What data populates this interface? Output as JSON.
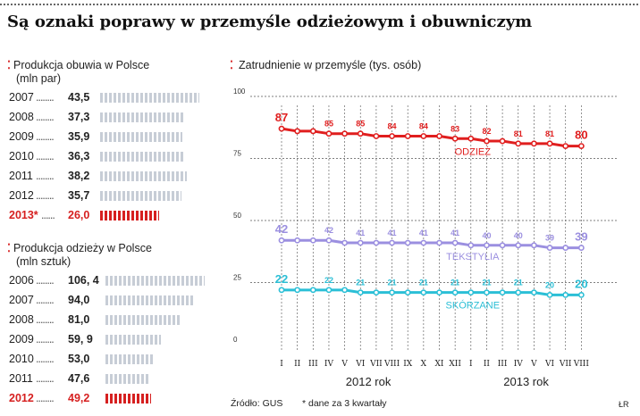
{
  "title": "Są oznaki poprawy w przemyśle odzieżowym i obuwniczym",
  "shoes": {
    "title_line1": "Produkcja obuwia w Polsce",
    "title_line2": "(mln par)",
    "rows": [
      {
        "year": "2007",
        "value": "43,5",
        "num": 43.5,
        "highlight": false
      },
      {
        "year": "2008",
        "value": "37,3",
        "num": 37.3,
        "highlight": false
      },
      {
        "year": "2009",
        "value": "35,9",
        "num": 35.9,
        "highlight": false
      },
      {
        "year": "2010",
        "value": "36,3",
        "num": 36.3,
        "highlight": false
      },
      {
        "year": "2011",
        "value": "38,2",
        "num": 38.2,
        "highlight": false
      },
      {
        "year": "2012",
        "value": "35,7",
        "num": 35.7,
        "highlight": false
      },
      {
        "year": "2013*",
        "value": "26,0",
        "num": 26.0,
        "highlight": true
      }
    ]
  },
  "clothes": {
    "title_line1": "Produkcja odzieży w Polsce",
    "title_line2": "(mln sztuk)",
    "rows": [
      {
        "year": "2006",
        "value": "106, 4",
        "num": 106.4,
        "highlight": false
      },
      {
        "year": "2007",
        "value": "94,0",
        "num": 94.0,
        "highlight": false
      },
      {
        "year": "2008",
        "value": "81,0",
        "num": 81.0,
        "highlight": false
      },
      {
        "year": "2009",
        "value": "59, 9",
        "num": 59.9,
        "highlight": false
      },
      {
        "year": "2010",
        "value": "53,0",
        "num": 53.0,
        "highlight": false
      },
      {
        "year": "2011",
        "value": "47,6",
        "num": 47.6,
        "highlight": false
      },
      {
        "year": "2012",
        "value": "49,2",
        "num": 49.2,
        "highlight": true
      }
    ]
  },
  "footer": {
    "source": "Źródło: GUS",
    "note": "* dane za 3 kwartały",
    "credit": "ŁR"
  },
  "colors": {
    "accent": "#d62020",
    "odziez": "#e01e1e",
    "tekstylia": "#9b8fe0",
    "skorzane": "#2bbfd6",
    "bar_gray": "#c7cdd6"
  },
  "chart_data": {
    "type": "line",
    "title": "Zatrudnienie w przemyśle (tys. osób)",
    "x": [
      "I",
      "II",
      "III",
      "IV",
      "V",
      "VI",
      "VII",
      "VIII",
      "IX",
      "X",
      "XI",
      "XII",
      "I",
      "II",
      "III",
      "IV",
      "V",
      "VI",
      "VII",
      "VIII"
    ],
    "x_groups": [
      {
        "label": "2012 rok",
        "from": 0,
        "to": 11
      },
      {
        "label": "2013 rok",
        "from": 12,
        "to": 19
      }
    ],
    "ylim": [
      0,
      100
    ],
    "yticks": [
      0,
      25,
      50,
      75,
      100
    ],
    "grid": true,
    "series": [
      {
        "name": "ODZIEŻ",
        "color": "#e01e1e",
        "values": [
          87,
          86,
          86,
          85,
          85,
          85,
          84,
          84,
          84,
          84,
          84,
          83,
          83,
          82,
          82,
          81,
          81,
          81,
          80,
          80
        ],
        "labels": [
          {
            "i": 0,
            "t": "87"
          },
          {
            "i": 3,
            "t": "85"
          },
          {
            "i": 5,
            "t": "85"
          },
          {
            "i": 7,
            "t": "84"
          },
          {
            "i": 9,
            "t": "84"
          },
          {
            "i": 11,
            "t": "83"
          },
          {
            "i": 13,
            "t": "82"
          },
          {
            "i": 15,
            "t": "81"
          },
          {
            "i": 17,
            "t": "81"
          },
          {
            "i": 19,
            "t": "80"
          }
        ]
      },
      {
        "name": "TEKSTYLIA",
        "color": "#9b8fe0",
        "values": [
          42,
          42,
          42,
          42,
          41,
          41,
          41,
          41,
          41,
          41,
          41,
          41,
          40,
          40,
          40,
          40,
          40,
          39,
          39,
          39
        ],
        "labels": [
          {
            "i": 0,
            "t": "42"
          },
          {
            "i": 3,
            "t": "42"
          },
          {
            "i": 5,
            "t": "41"
          },
          {
            "i": 7,
            "t": "41"
          },
          {
            "i": 9,
            "t": "41"
          },
          {
            "i": 11,
            "t": "41"
          },
          {
            "i": 13,
            "t": "40"
          },
          {
            "i": 15,
            "t": "40"
          },
          {
            "i": 17,
            "t": "39"
          },
          {
            "i": 19,
            "t": "39"
          }
        ]
      },
      {
        "name": "SKÓRZANE",
        "color": "#2bbfd6",
        "values": [
          22,
          22,
          22,
          22,
          22,
          21,
          21,
          21,
          21,
          21,
          21,
          21,
          21,
          21,
          21,
          21,
          21,
          20,
          20,
          20
        ],
        "labels": [
          {
            "i": 0,
            "t": "22"
          },
          {
            "i": 3,
            "t": "22"
          },
          {
            "i": 5,
            "t": "21"
          },
          {
            "i": 7,
            "t": "21"
          },
          {
            "i": 9,
            "t": "21"
          },
          {
            "i": 11,
            "t": "21"
          },
          {
            "i": 13,
            "t": "21"
          },
          {
            "i": 15,
            "t": "21"
          },
          {
            "i": 17,
            "t": "20"
          },
          {
            "i": 19,
            "t": "20"
          }
        ]
      }
    ]
  }
}
